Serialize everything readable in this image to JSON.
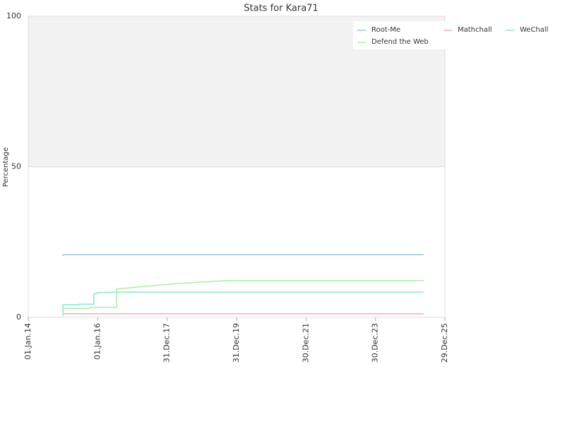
{
  "chart_data": {
    "type": "line",
    "title": "Stats for Kara71",
    "y_label": "Percentage",
    "xlim": [
      "2014-01-01",
      "2025-12-29"
    ],
    "xticks": [
      {
        "value": "2014-01-01",
        "label": "01.Jan.14"
      },
      {
        "value": "2016-01-01",
        "label": "01.Jan.16"
      },
      {
        "value": "2017-12-31",
        "label": "31.Dec.17"
      },
      {
        "value": "2019-12-31",
        "label": "31.Dec.19"
      },
      {
        "value": "2021-12-30",
        "label": "30.Dec.21"
      },
      {
        "value": "2023-12-30",
        "label": "30.Dec.23"
      },
      {
        "value": "2025-12-29",
        "label": "29.Dec.25"
      }
    ],
    "ylim": [
      0,
      100
    ],
    "yticks": [
      0,
      50,
      100
    ],
    "series": [
      {
        "name": "Root-Me",
        "color": "#8fc6e8",
        "x": [
          "2015-01-01",
          "2015-01-01",
          "2025-05-20"
        ],
        "values": [
          20.4,
          20.8,
          20.8
        ]
      },
      {
        "name": "Mathchall",
        "color": "#f0a8c8",
        "x": [
          "2015-01-01",
          "2025-05-20"
        ],
        "values": [
          1.2,
          1.2
        ]
      },
      {
        "name": "WeChall",
        "color": "#88e8d0",
        "x": [
          "2015-01-01",
          "2015-01-01",
          "2015-06-18",
          "2015-06-18",
          "2015-11-21",
          "2015-11-21",
          "2016-01-13",
          "2016-07-17",
          "2025-05-20"
        ],
        "values": [
          0.5,
          4.2,
          4.2,
          4.4,
          4.4,
          7.7,
          8.2,
          8.4,
          8.4
        ]
      },
      {
        "name": "Defend the Web",
        "color": "#a8f0a0",
        "x": [
          "2015-01-01",
          "2015-10-16",
          "2015-10-16",
          "2016-07-17",
          "2016-07-17",
          "2017-04-03",
          "2018-04-09",
          "2019-09-11",
          "2025-05-20"
        ],
        "values": [
          3.0,
          3.0,
          3.3,
          3.3,
          9.4,
          10.2,
          11.2,
          12.2,
          12.2
        ]
      }
    ]
  }
}
